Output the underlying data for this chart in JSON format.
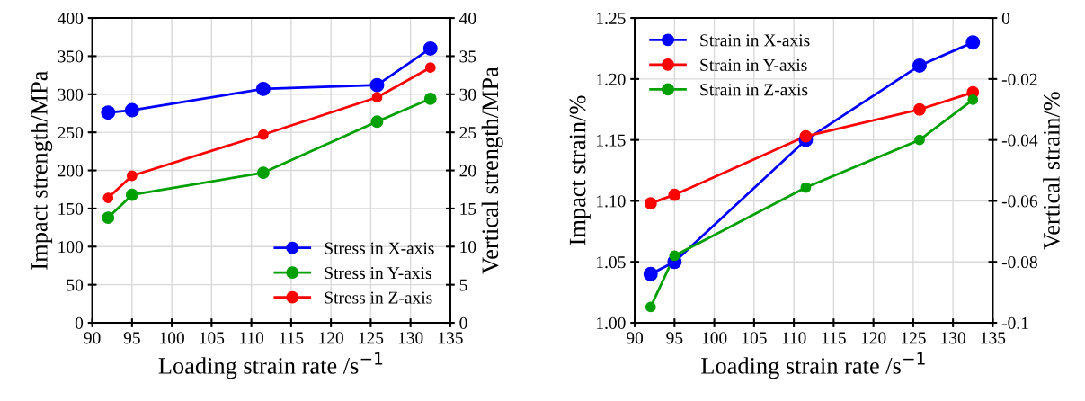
{
  "chart_data": [
    {
      "type": "line",
      "xlabel": "Loading strain rate /s$^{−1}$",
      "ylabel": "Impact strength/MPa",
      "y2label": "Vertical strength/MPa",
      "x": [
        92,
        95,
        111.5,
        125.8,
        132.5
      ],
      "series": [
        {
          "name": "Stress in X-axis",
          "color": "#0000ff",
          "values": [
            276,
            279,
            307,
            312,
            360
          ]
        },
        {
          "name": "Stress in Y-axis",
          "color": "#00a000",
          "values": [
            138,
            168,
            197,
            264,
            294
          ]
        },
        {
          "name": "Stress in Z-axis",
          "color": "#ff0000",
          "values": [
            164,
            193,
            247,
            296,
            335
          ]
        }
      ],
      "xlim": [
        90,
        135
      ],
      "xticks": [
        90,
        95,
        100,
        105,
        110,
        115,
        120,
        125,
        130,
        135
      ],
      "ylim": [
        0,
        400
      ],
      "yticks": [
        0,
        50,
        100,
        150,
        200,
        250,
        300,
        350,
        400
      ],
      "y2lim": [
        0,
        40
      ],
      "y2ticks": [
        0,
        5,
        10,
        15,
        20,
        25,
        30,
        35,
        40
      ],
      "grid": true,
      "legend": "bottom right",
      "marker": "circle",
      "line_style": "solid"
    },
    {
      "type": "line",
      "xlabel": "Loading strain rate /s$^{−1}$",
      "ylabel": "Impact strain/%",
      "y2label": "Vertical strain/%",
      "x": [
        92,
        95,
        111.5,
        125.8,
        132.5
      ],
      "series": [
        {
          "name": "Strain in X-axis",
          "color": "#0000ff",
          "values": [
            1.04,
            1.05,
            1.15,
            1.211,
            1.23
          ]
        },
        {
          "name": "Strain in Y-axis",
          "color": "#ff0000",
          "values": [
            1.098,
            1.105,
            1.153,
            1.175,
            1.189
          ]
        },
        {
          "name": "Strain in Z-axis",
          "color": "#00a000",
          "values": [
            1.013,
            1.055,
            1.111,
            1.15,
            1.183
          ]
        }
      ],
      "xlim": [
        90,
        135
      ],
      "xticks": [
        90,
        95,
        100,
        105,
        110,
        115,
        120,
        125,
        130,
        135
      ],
      "ylim": [
        1.0,
        1.25
      ],
      "yticks": [
        {
          "value": 1.0,
          "label": "1.00"
        },
        {
          "value": 1.05,
          "label": "1.05"
        },
        {
          "value": 1.1,
          "label": "1.10"
        },
        {
          "value": 1.15,
          "label": "1.15"
        },
        {
          "value": 1.2,
          "label": "1.20"
        },
        {
          "value": 1.25,
          "label": "1.25"
        }
      ],
      "y2lim": [
        -0.1,
        0
      ],
      "y2ticks": [
        -0.1,
        -0.08,
        -0.06,
        -0.04,
        -0.02,
        0
      ],
      "grid": true,
      "legend": "top left",
      "marker": "circle",
      "line_style": "solid"
    }
  ]
}
